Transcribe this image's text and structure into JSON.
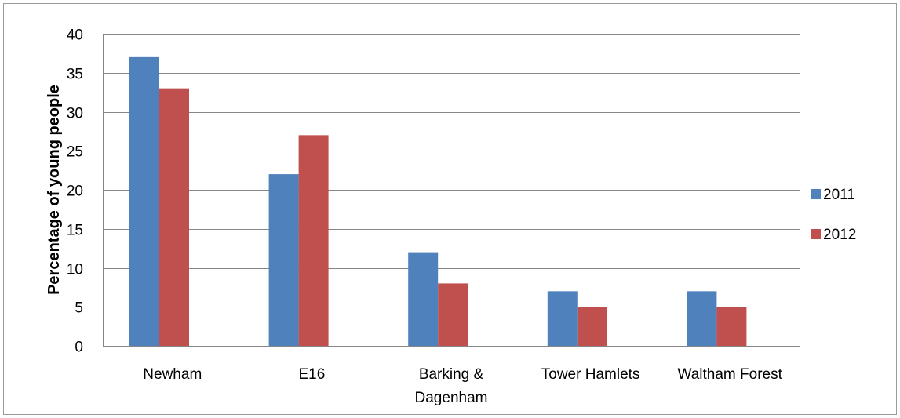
{
  "chart_data": {
    "type": "bar",
    "ylabel": "Percentage of young people",
    "xlabel": "",
    "categories": [
      [
        "Newham"
      ],
      [
        "E16"
      ],
      [
        "Barking &",
        "Dagenham"
      ],
      [
        "Tower Hamlets"
      ],
      [
        "Waltham Forest"
      ]
    ],
    "series": [
      {
        "name": "2011",
        "color": "#4F81BD",
        "values": [
          37,
          22,
          12,
          7,
          7
        ]
      },
      {
        "name": "2012",
        "color": "#C0504D",
        "values": [
          33,
          27,
          8,
          5,
          5
        ]
      }
    ],
    "ylim": [
      0,
      40
    ],
    "yticks": [
      0,
      5,
      10,
      15,
      20,
      25,
      30,
      35,
      40
    ],
    "grid": true,
    "legend_position": "right",
    "gridline_color": "#868686"
  }
}
